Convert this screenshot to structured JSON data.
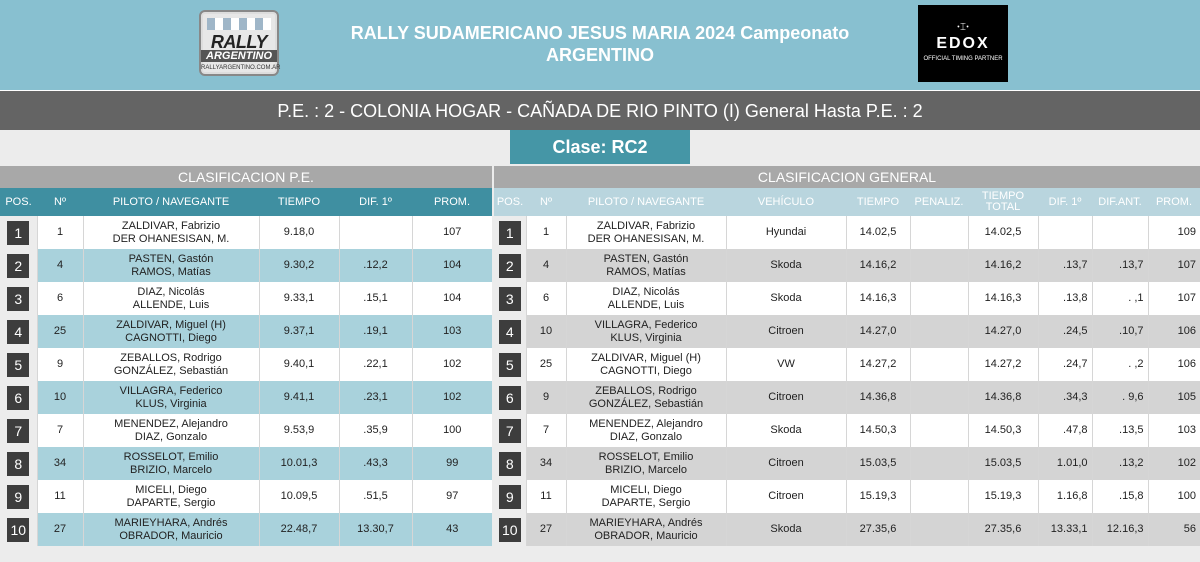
{
  "header": {
    "title_line1": "RALLY SUDAMERICANO JESUS MARIA 2024 Campeonato",
    "title_line2": "ARGENTINO",
    "logo_left": {
      "line1": "RALLY",
      "line2": "ARGENTINO",
      "line3": "RALLYARGENTINO.COM.AR"
    },
    "logo_right": {
      "mark": "ꞏ⌶ꞏ",
      "brand": "EDOX",
      "tagline": "OFFICIAL TIMING PARTNER"
    }
  },
  "stage_title": "P.E. : 2 - COLONIA HOGAR - CAÑADA DE RIO PINTO (I) General Hasta P.E. : 2",
  "clase": "Clase: RC2",
  "pe": {
    "section_title": "CLASIFICACION P.E.",
    "columns": [
      "POS.",
      "Nº",
      "PILOTO / NAVEGANTE",
      "TIEMPO",
      "DIF. 1º",
      "PROM."
    ],
    "rows": [
      {
        "pos": "1",
        "num": "1",
        "piloto": "ZALDIVAR, Fabrizio",
        "navegante": "DER OHANESISAN, M.",
        "tiempo": "9.18,0",
        "dif1": "",
        "prom": "107"
      },
      {
        "pos": "2",
        "num": "4",
        "piloto": "PASTEN, Gastón",
        "navegante": "RAMOS, Matías",
        "tiempo": "9.30,2",
        "dif1": ".12,2",
        "prom": "104"
      },
      {
        "pos": "3",
        "num": "6",
        "piloto": "DIAZ, Nicolás",
        "navegante": "ALLENDE, Luis",
        "tiempo": "9.33,1",
        "dif1": ".15,1",
        "prom": "104"
      },
      {
        "pos": "4",
        "num": "25",
        "piloto": "ZALDIVAR, Miguel (H)",
        "navegante": "CAGNOTTI, Diego",
        "tiempo": "9.37,1",
        "dif1": ".19,1",
        "prom": "103"
      },
      {
        "pos": "5",
        "num": "9",
        "piloto": "ZEBALLOS, Rodrigo",
        "navegante": "GONZÁLEZ, Sebastián",
        "tiempo": "9.40,1",
        "dif1": ".22,1",
        "prom": "102"
      },
      {
        "pos": "6",
        "num": "10",
        "piloto": "VILLAGRA, Federico",
        "navegante": "KLUS, Virginia",
        "tiempo": "9.41,1",
        "dif1": ".23,1",
        "prom": "102"
      },
      {
        "pos": "7",
        "num": "7",
        "piloto": "MENENDEZ, Alejandro",
        "navegante": "DIAZ, Gonzalo",
        "tiempo": "9.53,9",
        "dif1": ".35,9",
        "prom": "100"
      },
      {
        "pos": "8",
        "num": "34",
        "piloto": "ROSSELOT, Emilio",
        "navegante": "BRIZIO, Marcelo",
        "tiempo": "10.01,3",
        "dif1": ".43,3",
        "prom": "99"
      },
      {
        "pos": "9",
        "num": "11",
        "piloto": "MICELI, Diego",
        "navegante": "DAPARTE, Sergio",
        "tiempo": "10.09,5",
        "dif1": ".51,5",
        "prom": "97"
      },
      {
        "pos": "10",
        "num": "27",
        "piloto": "MARIEYHARA, Andrés",
        "navegante": "OBRADOR, Mauricio",
        "tiempo": "22.48,7",
        "dif1": "13.30,7",
        "prom": "43"
      }
    ]
  },
  "general": {
    "section_title": "CLASIFICACION GENERAL",
    "columns": [
      "POS.",
      "Nº",
      "PILOTO / NAVEGANTE",
      "VEHÍCULO",
      "TIEMPO",
      "PENALIZ.",
      "TIEMPO TOTAL",
      "DIF. 1º",
      "DIF.ANT.",
      "PROM."
    ],
    "rows": [
      {
        "pos": "1",
        "num": "1",
        "piloto": "ZALDIVAR, Fabrizio",
        "navegante": "DER OHANESISAN, M.",
        "vehiculo": "Hyundai",
        "tiempo": "14.02,5",
        "penaliz": "",
        "total": "14.02,5",
        "dif1": "",
        "difant": "",
        "prom": "109"
      },
      {
        "pos": "2",
        "num": "4",
        "piloto": "PASTEN, Gastón",
        "navegante": "RAMOS, Matías",
        "vehiculo": "Skoda",
        "tiempo": "14.16,2",
        "penaliz": "",
        "total": "14.16,2",
        "dif1": ".13,7",
        "difant": ".13,7",
        "prom": "107"
      },
      {
        "pos": "3",
        "num": "6",
        "piloto": "DIAZ, Nicolás",
        "navegante": "ALLENDE, Luis",
        "vehiculo": "Skoda",
        "tiempo": "14.16,3",
        "penaliz": "",
        "total": "14.16,3",
        "dif1": ".13,8",
        "difant": ". ,1",
        "prom": "107"
      },
      {
        "pos": "4",
        "num": "10",
        "piloto": "VILLAGRA, Federico",
        "navegante": "KLUS, Virginia",
        "vehiculo": "Citroen",
        "tiempo": "14.27,0",
        "penaliz": "",
        "total": "14.27,0",
        "dif1": ".24,5",
        "difant": ".10,7",
        "prom": "106"
      },
      {
        "pos": "5",
        "num": "25",
        "piloto": "ZALDIVAR, Miguel (H)",
        "navegante": "CAGNOTTI, Diego",
        "vehiculo": "VW",
        "tiempo": "14.27,2",
        "penaliz": "",
        "total": "14.27,2",
        "dif1": ".24,7",
        "difant": ". ,2",
        "prom": "106"
      },
      {
        "pos": "6",
        "num": "9",
        "piloto": "ZEBALLOS, Rodrigo",
        "navegante": "GONZÁLEZ, Sebastián",
        "vehiculo": "Citroen",
        "tiempo": "14.36,8",
        "penaliz": "",
        "total": "14.36,8",
        "dif1": ".34,3",
        "difant": ". 9,6",
        "prom": "105"
      },
      {
        "pos": "7",
        "num": "7",
        "piloto": "MENENDEZ, Alejandro",
        "navegante": "DIAZ, Gonzalo",
        "vehiculo": "Skoda",
        "tiempo": "14.50,3",
        "penaliz": "",
        "total": "14.50,3",
        "dif1": ".47,8",
        "difant": ".13,5",
        "prom": "103"
      },
      {
        "pos": "8",
        "num": "34",
        "piloto": "ROSSELOT, Emilio",
        "navegante": "BRIZIO, Marcelo",
        "vehiculo": "Citroen",
        "tiempo": "15.03,5",
        "penaliz": "",
        "total": "15.03,5",
        "dif1": "1.01,0",
        "difant": ".13,2",
        "prom": "102"
      },
      {
        "pos": "9",
        "num": "11",
        "piloto": "MICELI, Diego",
        "navegante": "DAPARTE, Sergio",
        "vehiculo": "Citroen",
        "tiempo": "15.19,3",
        "penaliz": "",
        "total": "15.19,3",
        "dif1": "1.16,8",
        "difant": ".15,8",
        "prom": "100"
      },
      {
        "pos": "10",
        "num": "27",
        "piloto": "MARIEYHARA, Andrés",
        "navegante": "OBRADOR, Mauricio",
        "vehiculo": "Skoda",
        "tiempo": "27.35,6",
        "penaliz": "",
        "total": "27.35,6",
        "dif1": "13.33,1",
        "difant": "12.16,3",
        "prom": "56"
      }
    ]
  }
}
